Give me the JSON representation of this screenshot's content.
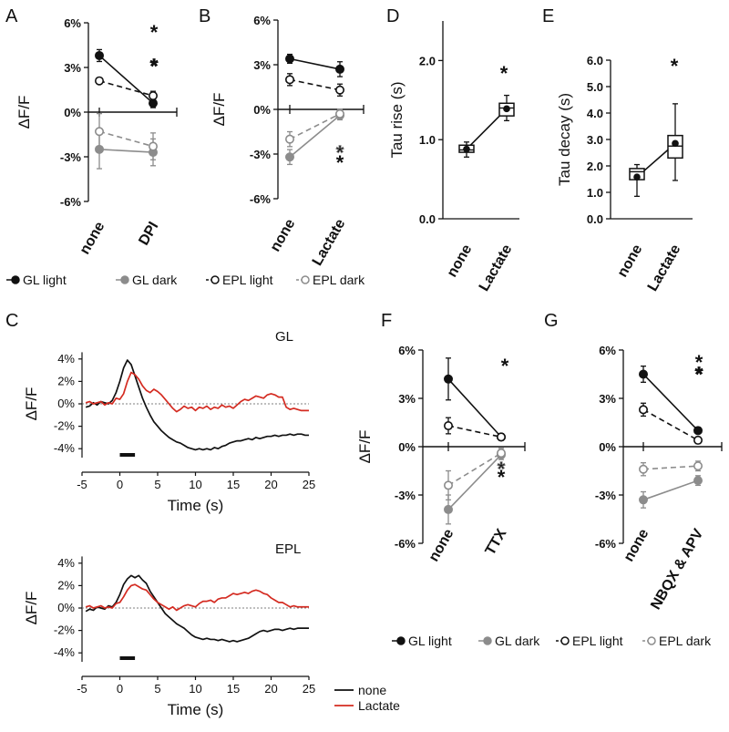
{
  "colors": {
    "black": "#111111",
    "gray": "#8c8c8c",
    "red": "#d42b21"
  },
  "panel_letters": {
    "A": "A",
    "B": "B",
    "C": "C",
    "D": "D",
    "E": "E",
    "F": "F",
    "G": "G"
  },
  "legend_top": [
    "GL light",
    "GL dark",
    "EPL light",
    "EPL dark"
  ],
  "legend_bottom": [
    "GL light",
    "GL dark",
    "EPL light",
    "EPL dark"
  ],
  "chart_data": [
    {
      "id": "A",
      "type": "line",
      "title": "",
      "ylabel": "ΔF/F",
      "xlabel": "",
      "ylim": [
        -6,
        6
      ],
      "yticks": [
        "6%",
        "3%",
        "0%",
        "-3%",
        "-6%"
      ],
      "categories": [
        "none",
        "DPI"
      ],
      "series": [
        {
          "name": "GL light",
          "values": [
            3.8,
            0.6
          ],
          "err": [
            0.4,
            0.3
          ],
          "style": "black-solid-filled"
        },
        {
          "name": "EPL light",
          "values": [
            2.1,
            1.1
          ],
          "err": [
            0.2,
            0.3
          ],
          "style": "black-dashed-open"
        },
        {
          "name": "GL dark",
          "values": [
            -2.5,
            -2.7
          ],
          "err": [
            1.3,
            0.9
          ],
          "style": "gray-solid-filled"
        },
        {
          "name": "EPL dark",
          "values": [
            -1.3,
            -2.3
          ],
          "err": [
            1.2,
            0.9
          ],
          "style": "gray-dashed-open"
        }
      ],
      "marks": [
        "*",
        "*"
      ]
    },
    {
      "id": "B",
      "type": "line",
      "title": "",
      "ylabel": "ΔF/F",
      "xlabel": "",
      "ylim": [
        -6,
        6
      ],
      "yticks": [
        "6%",
        "3%",
        "0%",
        "-3%",
        "-6%"
      ],
      "categories": [
        "none",
        "Lactate"
      ],
      "series": [
        {
          "name": "GL light",
          "values": [
            3.4,
            2.7
          ],
          "err": [
            0.3,
            0.5
          ],
          "style": "black-solid-filled"
        },
        {
          "name": "EPL light",
          "values": [
            2.0,
            1.3
          ],
          "err": [
            0.4,
            0.4
          ],
          "style": "black-dashed-open"
        },
        {
          "name": "GL dark",
          "values": [
            -3.2,
            -0.4
          ],
          "err": [
            0.5,
            0.3
          ],
          "style": "gray-solid-filled"
        },
        {
          "name": "EPL dark",
          "values": [
            -2.0,
            -0.3
          ],
          "err": [
            0.5,
            0.3
          ],
          "style": "gray-dashed-open"
        }
      ],
      "marks": [
        "*",
        "*"
      ]
    },
    {
      "id": "D",
      "type": "box",
      "ylabel": "Tau rise (s)",
      "ylim": [
        0,
        2.5
      ],
      "yticks": [
        "0.0",
        "1.0",
        "2.0"
      ],
      "categories": [
        "none",
        "Lactate"
      ],
      "boxes": [
        {
          "min": 0.78,
          "q1": 0.84,
          "median": 0.87,
          "q3": 0.93,
          "max": 0.97,
          "mean": 0.88
        },
        {
          "min": 1.24,
          "q1": 1.3,
          "median": 1.4,
          "q3": 1.46,
          "max": 1.56,
          "mean": 1.39
        }
      ],
      "marks": [
        "*"
      ]
    },
    {
      "id": "E",
      "type": "box",
      "ylabel": "Tau decay (s)",
      "ylim": [
        0,
        6
      ],
      "yticks": [
        "0.0",
        "1.0",
        "2.0",
        "3.0",
        "4.0",
        "5.0",
        "6.0"
      ],
      "categories": [
        "none",
        "Lactate"
      ],
      "boxes": [
        {
          "min": 0.85,
          "q1": 1.48,
          "median": 1.78,
          "q3": 1.9,
          "max": 2.05,
          "mean": 1.58
        },
        {
          "min": 1.45,
          "q1": 2.3,
          "median": 2.75,
          "q3": 3.15,
          "max": 4.35,
          "mean": 2.85
        }
      ],
      "marks": [
        "*"
      ]
    },
    {
      "id": "C-GL",
      "type": "line",
      "title": "GL",
      "ylabel": "ΔF/F",
      "xlabel": "Time (s)",
      "xlim": [
        -5,
        25
      ],
      "ylim": [
        -5,
        5
      ],
      "yticks": [
        "4%",
        "2%",
        "0%",
        "-2%",
        "-4%"
      ],
      "xticks": [
        "-5",
        "0",
        "5",
        "10",
        "15",
        "20",
        "25"
      ],
      "x": [
        -4.5,
        -4,
        -3.5,
        -3,
        -2.5,
        -2,
        -1.5,
        -1,
        -0.5,
        0,
        0.5,
        1,
        1.5,
        2,
        2.5,
        3,
        3.5,
        4,
        4.5,
        5,
        5.5,
        6,
        6.5,
        7,
        7.5,
        8,
        8.5,
        9,
        9.5,
        10,
        10.5,
        11,
        11.5,
        12,
        12.5,
        13,
        13.5,
        14,
        14.5,
        15,
        15.5,
        16,
        16.5,
        17,
        17.5,
        18,
        18.5,
        19,
        19.5,
        20,
        20.5,
        21,
        21.5,
        22,
        22.5,
        23,
        23.5,
        24,
        24.5,
        25
      ],
      "series": [
        {
          "name": "none",
          "values": [
            -0.3,
            -0.2,
            0.1,
            -0.1,
            0.2,
            0.1,
            0.0,
            0.3,
            1.0,
            2.0,
            3.2,
            3.9,
            3.5,
            2.5,
            1.5,
            0.5,
            -0.3,
            -1.0,
            -1.6,
            -2.0,
            -2.4,
            -2.7,
            -3.0,
            -3.2,
            -3.4,
            -3.5,
            -3.7,
            -3.9,
            -4.0,
            -4.1,
            -4.0,
            -4.1,
            -4.0,
            -4.1,
            -3.9,
            -4.0,
            -3.8,
            -3.7,
            -3.5,
            -3.4,
            -3.3,
            -3.3,
            -3.2,
            -3.1,
            -3.2,
            -3.0,
            -3.1,
            -3.0,
            -2.9,
            -2.9,
            -2.8,
            -2.9,
            -2.8,
            -2.8,
            -2.7,
            -2.8,
            -2.7,
            -2.7,
            -2.8,
            -2.8
          ],
          "color": "#111111"
        },
        {
          "name": "Lactate",
          "values": [
            0.1,
            0.2,
            0.0,
            0.1,
            0.2,
            -0.1,
            0.1,
            0.0,
            0.5,
            0.4,
            0.9,
            2.0,
            2.8,
            2.6,
            2.2,
            1.6,
            1.2,
            1.0,
            1.3,
            1.1,
            0.8,
            0.4,
            0.0,
            -0.4,
            -0.7,
            -0.5,
            -0.2,
            -0.4,
            -0.3,
            -0.6,
            -0.3,
            -0.4,
            -0.2,
            -0.5,
            -0.3,
            -0.4,
            -0.1,
            -0.3,
            -0.2,
            -0.4,
            -0.1,
            0.2,
            0.4,
            0.3,
            0.5,
            0.7,
            0.6,
            0.5,
            0.8,
            0.9,
            0.8,
            0.6,
            0.6,
            -0.3,
            -0.5,
            -0.4,
            -0.5,
            -0.6,
            -0.6,
            -0.6
          ],
          "color": "#d42b21"
        }
      ],
      "stimulus": [
        0,
        2
      ]
    },
    {
      "id": "C-EPL",
      "type": "line",
      "title": "EPL",
      "ylabel": "ΔF/F",
      "xlabel": "Time (s)",
      "xlim": [
        -5,
        25
      ],
      "ylim": [
        -5,
        5
      ],
      "yticks": [
        "4%",
        "2%",
        "0%",
        "-2%",
        "-4%"
      ],
      "xticks": [
        "-5",
        "0",
        "5",
        "10",
        "15",
        "20",
        "25"
      ],
      "x": [
        -4.5,
        -4,
        -3.5,
        -3,
        -2.5,
        -2,
        -1.5,
        -1,
        -0.5,
        0,
        0.5,
        1,
        1.5,
        2,
        2.5,
        3,
        3.5,
        4,
        4.5,
        5,
        5.5,
        6,
        6.5,
        7,
        7.5,
        8,
        8.5,
        9,
        9.5,
        10,
        10.5,
        11,
        11.5,
        12,
        12.5,
        13,
        13.5,
        14,
        14.5,
        15,
        15.5,
        16,
        16.5,
        17,
        17.5,
        18,
        18.5,
        19,
        19.5,
        20,
        20.5,
        21,
        21.5,
        22,
        22.5,
        23,
        23.5,
        24,
        24.5,
        25
      ],
      "series": [
        {
          "name": "none",
          "values": [
            -0.3,
            -0.1,
            -0.2,
            0.1,
            0.0,
            -0.1,
            0.2,
            0.1,
            0.5,
            1.2,
            2.1,
            2.6,
            2.9,
            2.7,
            2.9,
            2.5,
            2.2,
            1.5,
            1.0,
            0.5,
            0.0,
            -0.5,
            -0.8,
            -1.1,
            -1.4,
            -1.6,
            -1.8,
            -2.1,
            -2.4,
            -2.6,
            -2.7,
            -2.8,
            -2.7,
            -2.8,
            -2.8,
            -2.9,
            -2.8,
            -2.9,
            -3.0,
            -2.9,
            -3.0,
            -2.9,
            -2.8,
            -2.7,
            -2.5,
            -2.3,
            -2.1,
            -2.0,
            -2.1,
            -2.0,
            -1.9,
            -1.9,
            -2.0,
            -1.9,
            -1.8,
            -1.9,
            -1.8,
            -1.8,
            -1.8,
            -1.8
          ],
          "color": "#111111"
        },
        {
          "name": "Lactate",
          "values": [
            0.1,
            0.2,
            0.0,
            0.1,
            0.2,
            0.0,
            0.1,
            0.0,
            0.4,
            0.5,
            1.0,
            1.6,
            2.0,
            2.1,
            1.9,
            1.7,
            1.6,
            1.2,
            0.8,
            0.5,
            0.3,
            0.1,
            -0.1,
            0.1,
            -0.2,
            0.0,
            0.2,
            0.3,
            0.2,
            0.1,
            0.4,
            0.6,
            0.6,
            0.7,
            0.5,
            0.8,
            0.9,
            0.9,
            1.1,
            1.3,
            1.2,
            1.3,
            1.4,
            1.3,
            1.5,
            1.6,
            1.5,
            1.3,
            1.2,
            0.9,
            0.7,
            0.5,
            0.5,
            0.3,
            0.1,
            0.2,
            0.1,
            0.1,
            0.1,
            0.1
          ],
          "color": "#d42b21"
        }
      ],
      "stimulus": [
        0,
        2
      ]
    },
    {
      "id": "F",
      "type": "line",
      "title": "",
      "ylabel": "ΔF/F",
      "xlabel": "",
      "ylim": [
        -6,
        6
      ],
      "yticks": [
        "6%",
        "3%",
        "0%",
        "-3%",
        "-6%"
      ],
      "categories": [
        "none",
        "TTX"
      ],
      "series": [
        {
          "name": "GL light",
          "values": [
            4.2,
            0.6
          ],
          "err": [
            1.3,
            0.2
          ],
          "style": "black-solid-filled"
        },
        {
          "name": "EPL light",
          "values": [
            1.3,
            0.6
          ],
          "err": [
            0.5,
            0.2
          ],
          "style": "black-dashed-open"
        },
        {
          "name": "GL dark",
          "values": [
            -3.9,
            -0.5
          ],
          "err": [
            0.9,
            0.3
          ],
          "style": "gray-solid-filled"
        },
        {
          "name": "EPL dark",
          "values": [
            -2.4,
            -0.4
          ],
          "err": [
            0.9,
            0.3
          ],
          "style": "gray-dashed-open"
        }
      ],
      "marks": [
        "*",
        "*",
        "*"
      ]
    },
    {
      "id": "G",
      "type": "line",
      "title": "",
      "ylabel": "",
      "xlabel": "",
      "ylim": [
        -6,
        6
      ],
      "yticks": [
        "6%",
        "3%",
        "0%",
        "-3%",
        "-6%"
      ],
      "categories": [
        "none",
        "NBQX & APV"
      ],
      "series": [
        {
          "name": "GL light",
          "values": [
            4.5,
            1.0
          ],
          "err": [
            0.5,
            0.2
          ],
          "style": "black-solid-filled"
        },
        {
          "name": "EPL light",
          "values": [
            2.3,
            0.4
          ],
          "err": [
            0.4,
            0.2
          ],
          "style": "black-dashed-open"
        },
        {
          "name": "GL dark",
          "values": [
            -3.3,
            -2.1
          ],
          "err": [
            0.5,
            0.3
          ],
          "style": "gray-solid-filled"
        },
        {
          "name": "EPL dark",
          "values": [
            -1.4,
            -1.2
          ],
          "err": [
            0.4,
            0.3
          ],
          "style": "gray-dashed-open"
        }
      ],
      "marks": [
        "*",
        "*"
      ]
    }
  ],
  "trace_legend": [
    "none",
    "Lactate"
  ]
}
